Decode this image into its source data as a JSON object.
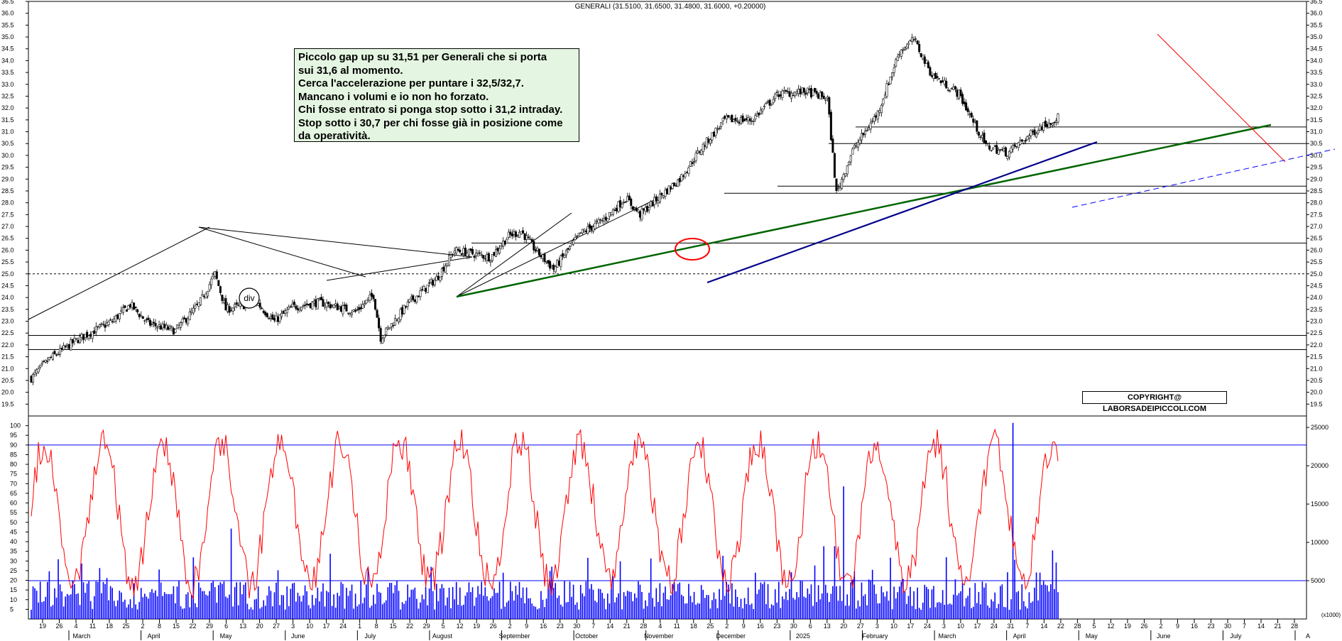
{
  "header": "GENERALI (31.5100, 31.6500, 31.4800, 31.6000, +0.20000)",
  "annotation_lines": [
    "Piccolo gap up su 31,51 per Generali che si porta",
    "sui 31,6 al momento.",
    "Cerca l'accelerazione per puntare i 32,5/32,7.",
    "Mancano i volumi e io non ho forzato.",
    "Chi fosse entrato si ponga stop sotto i 31,2 intraday.",
    "Stop sotto i 30,7 per chi fosse già in posizione come",
    "da operatività."
  ],
  "copyright": "COPYRIGHT@ LABORSADEIPICCOLI.COM",
  "div_label": "div",
  "volume_scale_label": "(x1000)",
  "colors": {
    "background": "#ffffff",
    "candle_up_fill": "#ffffff",
    "candle_down_fill": "#000000",
    "oscillator": "#ff0000",
    "volume": "#0000ff",
    "support_line": "#000000",
    "long_trend": "#006400",
    "mid_trend": "#00008b",
    "resistance_trend": "#ff0000",
    "channel_dashed": "#0000ff",
    "annotation_bg": "#e4f6e1"
  },
  "chart_data": {
    "type": "candlestick",
    "symbol": "GENERALI",
    "price_panel": {
      "ylim": [
        19.0,
        36.5
      ],
      "y_ticks": [
        "19.5",
        "20.0",
        "20.5",
        "21.0",
        "21.5",
        "22.0",
        "22.5",
        "23.0",
        "23.5",
        "24.0",
        "24.5",
        "25.0",
        "25.5",
        "26.0",
        "26.5",
        "27.0",
        "27.5",
        "28.0",
        "28.5",
        "29.0",
        "29.5",
        "30.0",
        "30.5",
        "31.0",
        "31.5",
        "32.0",
        "32.5",
        "33.0",
        "33.5",
        "34.0",
        "34.5",
        "35.0",
        "35.5",
        "36.0",
        "36.5"
      ],
      "close_series_key_points": [
        {
          "t": 0,
          "v": 20.6
        },
        {
          "t": 10,
          "v": 21.4
        },
        {
          "t": 25,
          "v": 22.2
        },
        {
          "t": 45,
          "v": 23.0
        },
        {
          "t": 55,
          "v": 23.7
        },
        {
          "t": 65,
          "v": 22.9
        },
        {
          "t": 80,
          "v": 22.6
        },
        {
          "t": 93,
          "v": 23.7
        },
        {
          "t": 102,
          "v": 25.0
        },
        {
          "t": 108,
          "v": 23.5
        },
        {
          "t": 125,
          "v": 23.8
        },
        {
          "t": 135,
          "v": 23.0
        },
        {
          "t": 145,
          "v": 23.6
        },
        {
          "t": 160,
          "v": 23.8
        },
        {
          "t": 180,
          "v": 23.4
        },
        {
          "t": 190,
          "v": 24.1
        },
        {
          "t": 194,
          "v": 22.3
        },
        {
          "t": 210,
          "v": 23.8
        },
        {
          "t": 225,
          "v": 24.8
        },
        {
          "t": 235,
          "v": 26.0
        },
        {
          "t": 255,
          "v": 25.7
        },
        {
          "t": 265,
          "v": 26.6
        },
        {
          "t": 272,
          "v": 26.8
        },
        {
          "t": 280,
          "v": 26.0
        },
        {
          "t": 290,
          "v": 25.2
        },
        {
          "t": 305,
          "v": 26.7
        },
        {
          "t": 318,
          "v": 27.3
        },
        {
          "t": 330,
          "v": 28.2
        },
        {
          "t": 338,
          "v": 27.5
        },
        {
          "t": 348,
          "v": 28.2
        },
        {
          "t": 360,
          "v": 29.0
        },
        {
          "t": 372,
          "v": 30.3
        },
        {
          "t": 385,
          "v": 31.5
        },
        {
          "t": 400,
          "v": 31.5
        },
        {
          "t": 415,
          "v": 32.6
        },
        {
          "t": 430,
          "v": 32.7
        },
        {
          "t": 442,
          "v": 32.4
        },
        {
          "t": 447,
          "v": 28.4
        },
        {
          "t": 456,
          "v": 30.2
        },
        {
          "t": 470,
          "v": 31.8
        },
        {
          "t": 482,
          "v": 34.4
        },
        {
          "t": 490,
          "v": 34.9
        },
        {
          "t": 500,
          "v": 33.4
        },
        {
          "t": 515,
          "v": 32.6
        },
        {
          "t": 530,
          "v": 30.4
        },
        {
          "t": 542,
          "v": 30.1
        },
        {
          "t": 560,
          "v": 31.2
        },
        {
          "t": 570,
          "v": 31.6
        }
      ]
    },
    "x_axis": {
      "tick_labels": [
        "19",
        "26",
        "4",
        "11",
        "18",
        "25",
        "2",
        "8",
        "15",
        "22",
        "29",
        "6",
        "13",
        "20",
        "27",
        "3",
        "10",
        "17",
        "24",
        "1",
        "8",
        "15",
        "22",
        "29",
        "5",
        "12",
        "19",
        "26",
        "2",
        "9",
        "16",
        "23",
        "30",
        "7",
        "14",
        "21",
        "28",
        "4",
        "11",
        "18",
        "25",
        "2",
        "9",
        "16",
        "23",
        "30",
        "6",
        "13",
        "20",
        "27",
        "3",
        "10",
        "17",
        "24",
        "3",
        "10",
        "17",
        "24",
        "31",
        "7",
        "14",
        "22",
        "28",
        "5",
        "12",
        "19",
        "26",
        "2",
        "9",
        "16",
        "23",
        "30",
        "7",
        "14",
        "21",
        "28"
      ],
      "month_labels": [
        "March",
        "April",
        "May",
        "June",
        "July",
        "August",
        "September",
        "October",
        "November",
        "December",
        "2025",
        "February",
        "March",
        "April",
        "May",
        "June",
        "July",
        "A"
      ]
    },
    "oscillator_panel": {
      "ylim": [
        0,
        105
      ],
      "y_ticks": [
        "5",
        "10",
        "15",
        "20",
        "25",
        "30",
        "35",
        "40",
        "45",
        "50",
        "55",
        "60",
        "65",
        "70",
        "75",
        "80",
        "85",
        "90",
        "95",
        "100"
      ],
      "reference_level": 90
    },
    "volume_panel": {
      "y_ticks": [
        "5000",
        "10000",
        "15000",
        "20000",
        "25000"
      ],
      "units": "(x1000)",
      "reference_level": 5000
    },
    "horizontal_levels": [
      21.8,
      22.4,
      26.3,
      28.4,
      28.7,
      30.5,
      31.2
    ],
    "dotted_level": 25.0
  }
}
